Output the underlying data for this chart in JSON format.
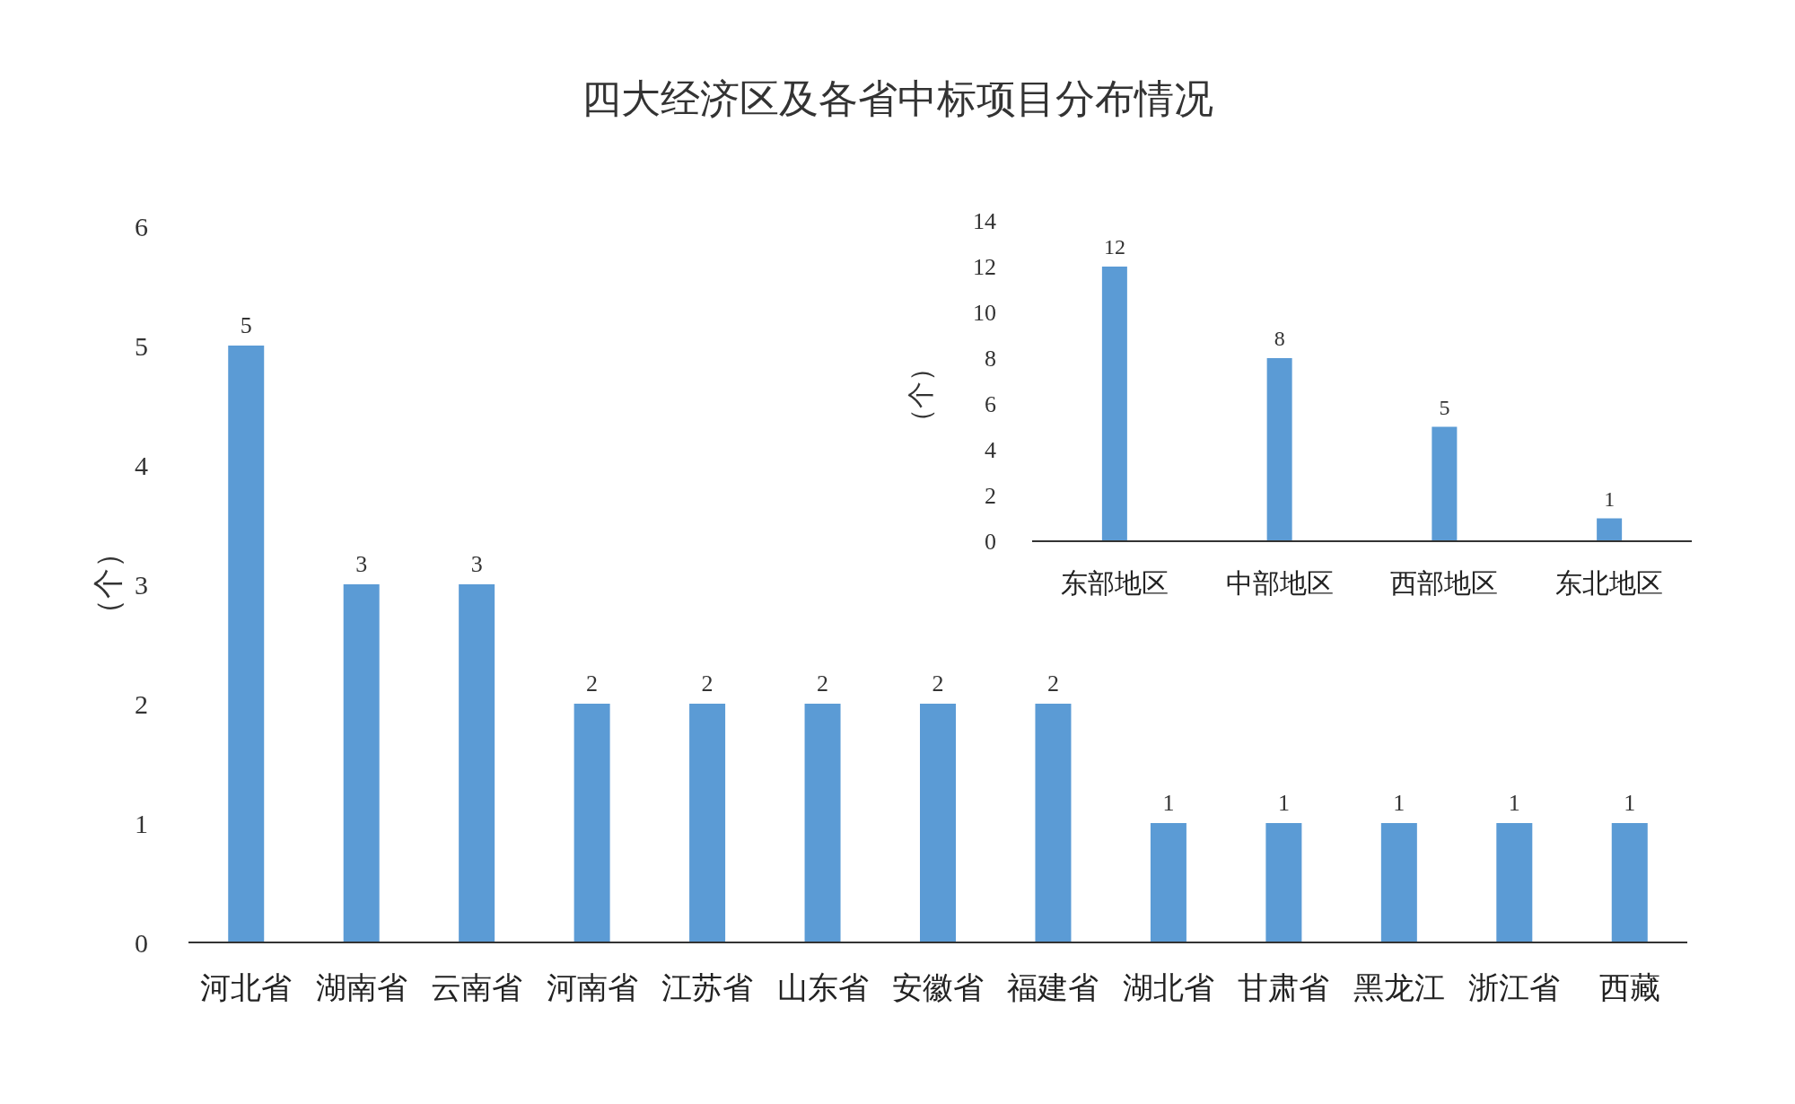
{
  "chart_data": [
    {
      "type": "bar",
      "title": "四大经济区及各省中标项目分布情况",
      "ylabel": "（个）",
      "categories": [
        "河北省",
        "湖南省",
        "云南省",
        "河南省",
        "江苏省",
        "山东省",
        "安徽省",
        "福建省",
        "湖北省",
        "甘肃省",
        "黑龙江",
        "浙江省",
        "西藏"
      ],
      "values": [
        5,
        3,
        3,
        2,
        2,
        2,
        2,
        2,
        1,
        1,
        1,
        1,
        1
      ],
      "color": "#5b9bd5",
      "ylim": [
        0,
        6
      ],
      "yticks": [
        0,
        1,
        2,
        3,
        4,
        5,
        6
      ],
      "data_labels": true
    },
    {
      "type": "bar",
      "ylabel": "（个）",
      "categories": [
        "东部地区",
        "中部地区",
        "西部地区",
        "东北地区"
      ],
      "values": [
        12,
        8,
        5,
        1
      ],
      "color": "#5b9bd5",
      "ylim": [
        0,
        14
      ],
      "yticks": [
        0,
        2,
        4,
        6,
        8,
        10,
        12,
        14
      ],
      "data_labels": true
    }
  ]
}
